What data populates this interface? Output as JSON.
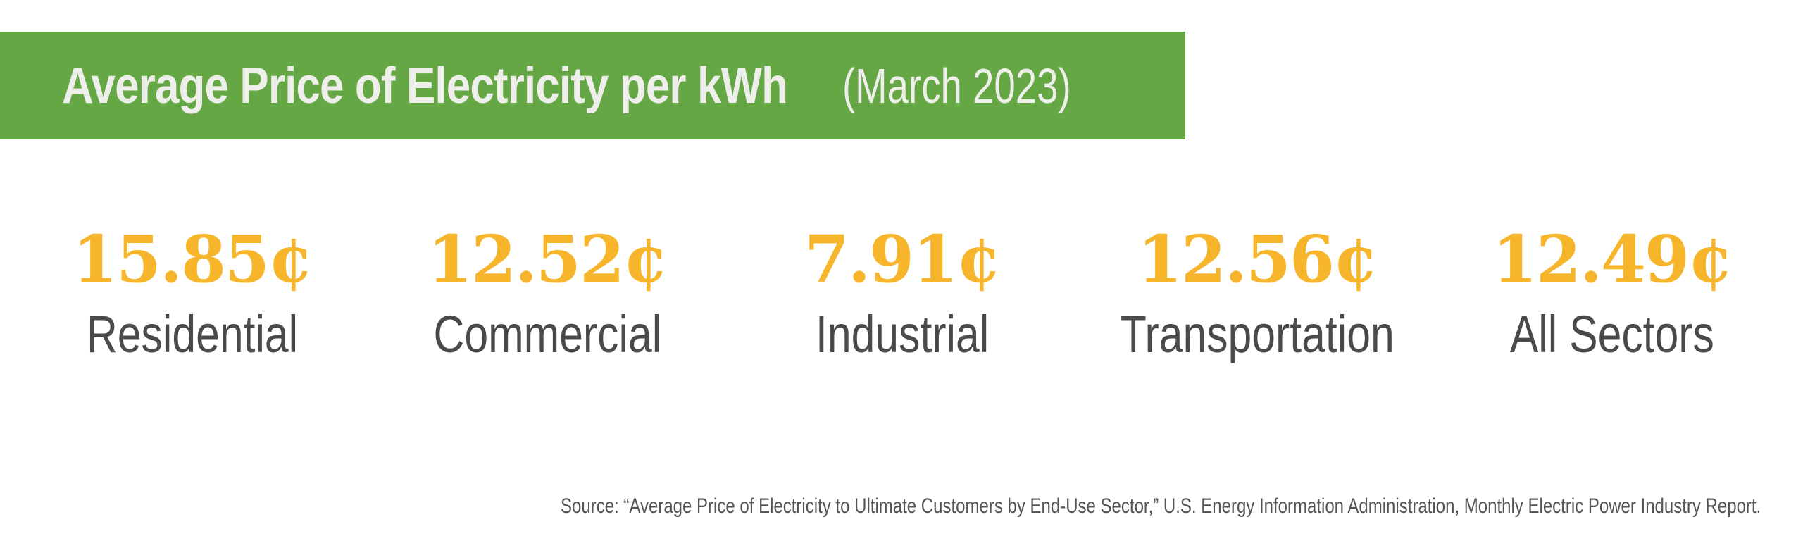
{
  "colors": {
    "banner_bg": "#65a744",
    "title_text": "#eeeeea",
    "value": "#f7b52b",
    "label": "#4a4a4a",
    "source": "#555555"
  },
  "header": {
    "title": "Average Price of Electricity per kWh",
    "subtitle": "(March 2023)"
  },
  "chart_data": {
    "type": "table",
    "title": "Average Price of Electricity per kWh",
    "subtitle": "(March 2023)",
    "unit": "¢",
    "categories": [
      "Residential",
      "Commercial",
      "Industrial",
      "Transportation",
      "All Sectors"
    ],
    "values": [
      15.85,
      12.52,
      7.91,
      12.56,
      12.49
    ],
    "value_labels": [
      "15.85¢",
      "12.52¢",
      "7.91¢",
      "12.56¢",
      "12.49¢"
    ]
  },
  "footer": {
    "source": "Source: “Average Price of Electricity to Ultimate Customers by End-Use Sector,” U.S. Energy Information Administration, Monthly Electric Power Industry Report."
  }
}
